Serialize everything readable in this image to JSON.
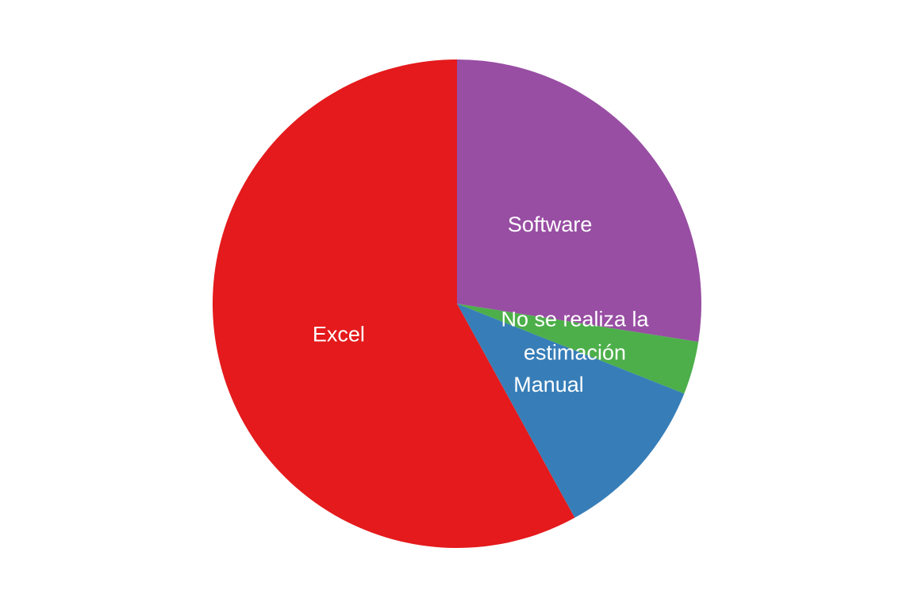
{
  "chart_data": {
    "type": "pie",
    "slices": [
      {
        "label": "Software",
        "value": 27.5,
        "color": "#984EA3",
        "label_lines": [
          "Software"
        ]
      },
      {
        "label": "No se realiza la estimación",
        "value": 3.5,
        "color": "#4DAF4A",
        "label_lines": [
          "No se realiza la",
          "estimación"
        ]
      },
      {
        "label": "Manual",
        "value": 11.0,
        "color": "#377EB8",
        "label_lines": [
          "Manual"
        ]
      },
      {
        "label": "Excel",
        "value": 58.0,
        "color": "#E41A1C",
        "label_lines": [
          "Excel"
        ]
      }
    ],
    "start_angle": "12 o'clock",
    "direction": "clockwise",
    "labels_inside": true,
    "legend": "none"
  }
}
